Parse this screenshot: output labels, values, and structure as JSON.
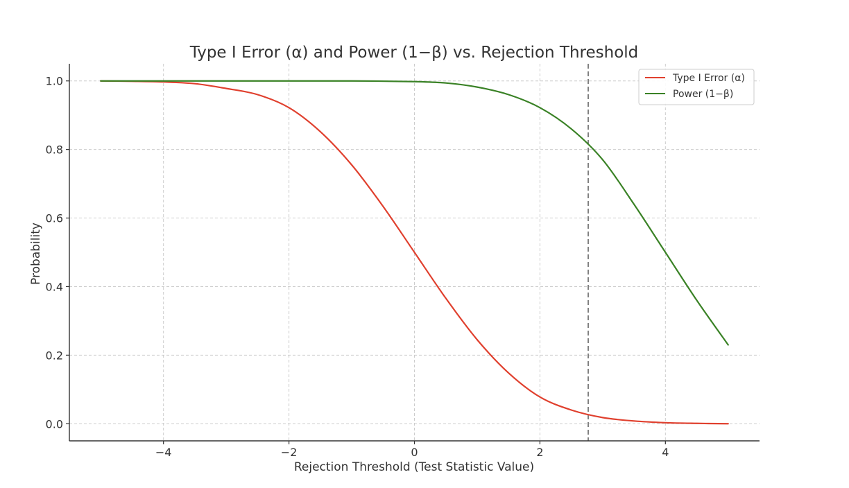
{
  "chart_data": {
    "type": "line",
    "title": "Type I Error (α) and Power (1−β) vs. Rejection Threshold",
    "xlabel": "Rejection Threshold (Test Statistic Value)",
    "ylabel": "Probability",
    "xlim": [
      -5.5,
      5.5
    ],
    "ylim": [
      -0.05,
      1.05
    ],
    "x_ticks": [
      -4,
      -2,
      0,
      2,
      4
    ],
    "x_tick_labels": [
      "−4",
      "−2",
      "0",
      "2",
      "4"
    ],
    "y_ticks": [
      0.0,
      0.2,
      0.4,
      0.6,
      0.8,
      1.0
    ],
    "y_tick_labels": [
      "0.0",
      "0.2",
      "0.4",
      "0.6",
      "0.8",
      "1.0"
    ],
    "grid": true,
    "legend_position": "top-right",
    "series": [
      {
        "name": "Type I Error (α)",
        "color": "#e0402e",
        "x": [
          -5,
          -4.5,
          -4,
          -3.5,
          -3,
          -2.5,
          -2,
          -1.5,
          -1,
          -0.5,
          0,
          0.5,
          1,
          1.5,
          2,
          2.5,
          3,
          3.5,
          4,
          4.5,
          5
        ],
        "y": [
          1.0,
          0.999,
          0.997,
          0.992,
          0.978,
          0.96,
          0.922,
          0.852,
          0.755,
          0.634,
          0.5,
          0.366,
          0.245,
          0.148,
          0.078,
          0.04,
          0.018,
          0.008,
          0.003,
          0.001,
          0.0
        ]
      },
      {
        "name": "Power (1−β)",
        "color": "#3a8226",
        "x": [
          -5,
          -4,
          -3,
          -2,
          -1,
          0,
          0.5,
          1,
          1.5,
          2,
          2.5,
          3,
          3.5,
          4,
          4.5,
          5
        ],
        "y": [
          1.0,
          1.0,
          1.0,
          1.0,
          1.0,
          0.998,
          0.994,
          0.982,
          0.96,
          0.922,
          0.86,
          0.77,
          0.64,
          0.5,
          0.36,
          0.23
        ]
      }
    ],
    "reference_lines": [
      {
        "orientation": "vertical",
        "x": 2.77,
        "style": "dashed",
        "color": "#808080"
      }
    ]
  }
}
